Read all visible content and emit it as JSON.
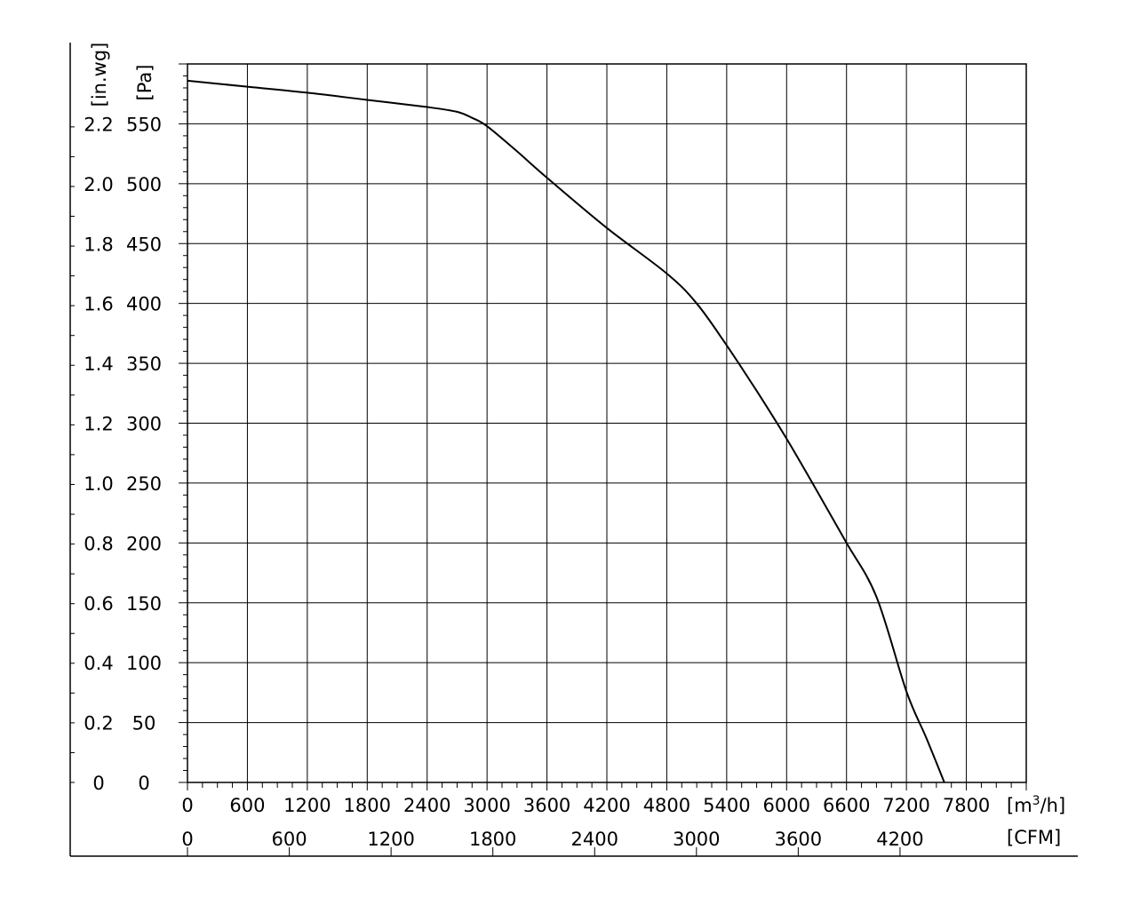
{
  "chart_data": {
    "type": "line",
    "title": "",
    "x_primary": {
      "unit_label_prefix": "[m",
      "unit_label_sup": "3",
      "unit_label_suffix": "/h]",
      "range": [
        0,
        8400
      ],
      "ticks": [
        "0",
        "600",
        "1200",
        "1800",
        "2400",
        "3000",
        "3600",
        "4200",
        "4800",
        "5400",
        "6000",
        "6600",
        "7200",
        "7800"
      ]
    },
    "x_secondary": {
      "unit_label": "[CFM]",
      "ticks": [
        "0",
        "600",
        "1200",
        "1800",
        "2400",
        "3000",
        "3600",
        "4200"
      ]
    },
    "y_primary": {
      "unit_label": "[Pa]",
      "range": [
        0,
        600
      ],
      "ticks": [
        "0",
        "50",
        "100",
        "150",
        "200",
        "250",
        "300",
        "350",
        "400",
        "450",
        "500",
        "550"
      ]
    },
    "y_secondary": {
      "unit_label": "[in.wg]",
      "ticks": [
        "0",
        "0.2",
        "0.4",
        "0.6",
        "0.8",
        "1.0",
        "1.2",
        "1.4",
        "1.6",
        "1.8",
        "2.0",
        "2.2"
      ]
    },
    "grid": true,
    "series": [
      {
        "x": [
          0,
          600,
          1200,
          1800,
          2400,
          2700,
          2850,
          3000,
          3300,
          3600,
          4200,
          4800,
          5100,
          5400,
          5700,
          6000,
          6300,
          6600,
          6900,
          7200,
          7400,
          7580
        ],
        "y": [
          586,
          581,
          576,
          570,
          564,
          560,
          555,
          548,
          527,
          505,
          463,
          425,
          400,
          365,
          327,
          287,
          244,
          200,
          155,
          76,
          37,
          0
        ]
      }
    ]
  }
}
